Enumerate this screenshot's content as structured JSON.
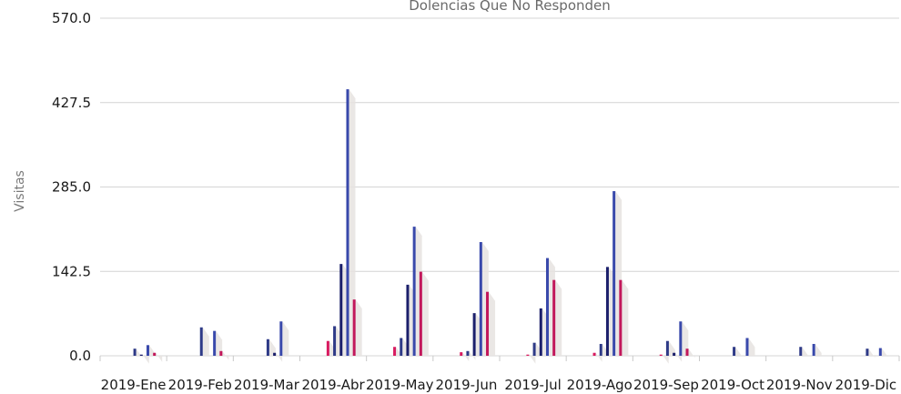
{
  "chart_data": {
    "type": "bar",
    "title": "Dolencias Que No Responden",
    "ylabel": "Visitas",
    "xlabel": "",
    "ylim": [
      0,
      570
    ],
    "yticks": [
      "0.0",
      "142.5",
      "285.0",
      "427.5",
      "570.0"
    ],
    "grid": true,
    "legend": "none",
    "categories": [
      "2019-Ene",
      "2019-Feb",
      "2019-Mar",
      "2019-Abr",
      "2019-May",
      "2019-Jun",
      "2019-Jul",
      "2019-Ago",
      "2019-Sep",
      "2019-Oct",
      "2019-Nov",
      "2019-Dic"
    ],
    "series": [
      {
        "color": "#f5a623",
        "values": [
          0,
          0,
          0,
          0,
          0,
          0,
          0,
          0,
          0,
          0,
          0,
          0
        ]
      },
      {
        "color": "#f0d37a",
        "values": [
          0,
          0,
          0,
          0,
          0,
          0,
          0,
          0,
          0,
          0,
          0,
          0
        ]
      },
      {
        "color": "#d81b60",
        "values": [
          0,
          0,
          0,
          25,
          15,
          6,
          2,
          5,
          2,
          0,
          0,
          0
        ]
      },
      {
        "color": "#2e3a87",
        "values": [
          12,
          48,
          28,
          50,
          30,
          8,
          22,
          20,
          25,
          15,
          15,
          12
        ]
      },
      {
        "color": "#1b1f6b",
        "values": [
          2,
          0,
          5,
          155,
          120,
          72,
          80,
          150,
          5,
          0,
          0,
          0
        ]
      },
      {
        "color": "#3949ab",
        "values": [
          18,
          42,
          58,
          450,
          218,
          192,
          165,
          278,
          58,
          30,
          20,
          13
        ]
      },
      {
        "color": "#c2185b",
        "values": [
          5,
          8,
          0,
          95,
          142,
          108,
          128,
          128,
          12,
          0,
          0,
          0
        ]
      }
    ]
  }
}
